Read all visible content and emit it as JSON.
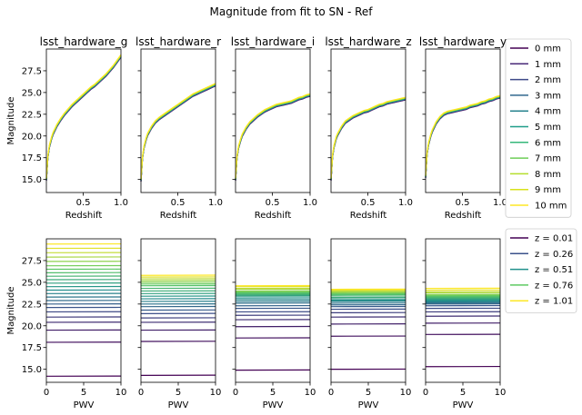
{
  "title": "Magnitude from fit to SN - Ref",
  "chart_data": [
    {
      "type": "line",
      "row": "top",
      "xlabel": "Redshift",
      "ylabel": "Magnitude",
      "xlim": [
        0.01,
        1.0
      ],
      "ylim": [
        13.5,
        30.0
      ],
      "xticks": [
        0.5,
        1.0
      ],
      "xtick_labels": [
        "0.5",
        "1.0"
      ],
      "yticks": [
        15.0,
        17.5,
        20.0,
        22.5,
        25.0,
        27.5
      ],
      "ytick_labels": [
        "15.0",
        "17.5",
        "20.0",
        "22.5",
        "25.0",
        "27.5"
      ],
      "subplot_titles": [
        "lsst_hardware_g",
        "lsst_hardware_r",
        "lsst_hardware_i",
        "lsst_hardware_z",
        "lsst_hardware_y"
      ],
      "x": [
        0.01,
        0.03,
        0.05,
        0.08,
        0.1,
        0.15,
        0.2,
        0.25,
        0.3,
        0.35,
        0.4,
        0.45,
        0.5,
        0.55,
        0.6,
        0.65,
        0.7,
        0.75,
        0.8,
        0.85,
        0.9,
        0.95,
        1.0
      ],
      "bands": [
        {
          "name": "lsst_hardware_g",
          "values": [
            15.0,
            17.6,
            18.8,
            19.8,
            20.3,
            21.2,
            21.9,
            22.5,
            23.0,
            23.5,
            23.9,
            24.3,
            24.7,
            25.1,
            25.5,
            25.8,
            26.2,
            26.6,
            27.0,
            27.5,
            28.0,
            28.6,
            29.2
          ]
        },
        {
          "name": "lsst_hardware_r",
          "values": [
            14.9,
            17.5,
            18.7,
            19.7,
            20.2,
            21.0,
            21.6,
            22.0,
            22.3,
            22.6,
            22.9,
            23.2,
            23.5,
            23.8,
            24.1,
            24.4,
            24.7,
            24.9,
            25.1,
            25.3,
            25.5,
            25.7,
            25.9
          ]
        },
        {
          "name": "lsst_hardware_i",
          "values": [
            15.0,
            17.6,
            18.7,
            19.6,
            20.1,
            20.9,
            21.5,
            21.9,
            22.3,
            22.6,
            22.9,
            23.1,
            23.3,
            23.5,
            23.6,
            23.7,
            23.8,
            23.9,
            24.1,
            24.3,
            24.4,
            24.6,
            24.7
          ]
        },
        {
          "name": "lsst_hardware_z",
          "values": [
            15.0,
            17.7,
            18.8,
            19.8,
            20.2,
            21.0,
            21.6,
            21.9,
            22.2,
            22.4,
            22.6,
            22.8,
            22.9,
            23.1,
            23.3,
            23.5,
            23.6,
            23.8,
            23.9,
            24.0,
            24.1,
            24.2,
            24.3
          ]
        },
        {
          "name": "lsst_hardware_y",
          "values": [
            15.3,
            18.0,
            19.1,
            20.1,
            20.6,
            21.5,
            22.1,
            22.5,
            22.7,
            22.8,
            22.9,
            23.0,
            23.1,
            23.2,
            23.4,
            23.5,
            23.6,
            23.8,
            23.9,
            24.1,
            24.2,
            24.4,
            24.5
          ]
        }
      ],
      "legend": {
        "placement": "right of top row",
        "entries": [
          "0 mm",
          "1 mm",
          "2 mm",
          "3 mm",
          "4 mm",
          "5 mm",
          "6 mm",
          "7 mm",
          "8 mm",
          "9 mm",
          "10 mm"
        ],
        "colors": [
          "#440154",
          "#482878",
          "#3e4989",
          "#31688e",
          "#26828e",
          "#1f9e89",
          "#35b779",
          "#6ece58",
          "#b5de2b",
          "#d8e219",
          "#fde725"
        ]
      }
    },
    {
      "type": "line",
      "row": "bottom",
      "xlabel": "PWV",
      "ylabel": "Magnitude",
      "xlim": [
        0,
        10
      ],
      "ylim": [
        13.5,
        30.0
      ],
      "xticks": [
        0,
        5,
        10
      ],
      "xtick_labels": [
        "0",
        "5",
        "10"
      ],
      "yticks": [
        15.0,
        17.5,
        20.0,
        22.5,
        25.0,
        27.5
      ],
      "ytick_labels": [
        "15.0",
        "17.5",
        "20.0",
        "22.5",
        "25.0",
        "27.5"
      ],
      "x": [
        0,
        10
      ],
      "panels": [
        {
          "band": "lsst_hardware_g",
          "magnitudes": [
            14.2,
            18.1,
            19.5,
            20.4,
            21.0,
            21.6,
            22.1,
            22.5,
            22.9,
            23.3,
            23.7,
            24.1,
            24.5,
            24.9,
            25.3,
            25.7,
            26.1,
            26.5,
            26.9,
            27.4,
            27.9,
            28.4,
            28.9,
            29.4
          ]
        },
        {
          "band": "lsst_hardware_r",
          "magnitudes": [
            14.3,
            18.2,
            19.5,
            20.4,
            20.9,
            21.4,
            21.8,
            22.2,
            22.5,
            22.8,
            23.1,
            23.4,
            23.7,
            24.0,
            24.3,
            24.6,
            24.8,
            25.0,
            25.2,
            25.4,
            25.6,
            25.8
          ]
        },
        {
          "band": "lsst_hardware_i",
          "magnitudes": [
            14.9,
            18.6,
            19.9,
            20.7,
            21.2,
            21.6,
            22.0,
            22.3,
            22.6,
            22.8,
            23.0,
            23.2,
            23.4,
            23.5,
            23.6,
            23.7,
            23.8,
            23.9,
            24.0,
            24.2,
            24.3,
            24.5,
            24.6
          ]
        },
        {
          "band": "lsst_hardware_z",
          "magnitudes": [
            15.0,
            18.8,
            20.2,
            21.0,
            21.5,
            21.9,
            22.2,
            22.4,
            22.6,
            22.8,
            22.9,
            23.0,
            23.2,
            23.3,
            23.5,
            23.6,
            23.7,
            23.8,
            23.9,
            24.0,
            24.1,
            24.2
          ]
        },
        {
          "band": "lsst_hardware_y",
          "magnitudes": [
            15.3,
            19.0,
            20.3,
            21.1,
            21.6,
            22.0,
            22.3,
            22.5,
            22.6,
            22.7,
            22.8,
            22.9,
            23.0,
            23.1,
            23.2,
            23.3,
            23.4,
            23.5,
            23.6,
            23.8,
            23.9,
            24.1,
            24.3
          ]
        }
      ],
      "legend": {
        "placement": "right of bottom row",
        "entries": [
          "z = 0.01",
          "z = 0.26",
          "z = 0.51",
          "z = 0.76",
          "z = 1.01"
        ],
        "colors": [
          "#440154",
          "#3b528b",
          "#21918c",
          "#5ec962",
          "#fde725"
        ]
      }
    }
  ]
}
